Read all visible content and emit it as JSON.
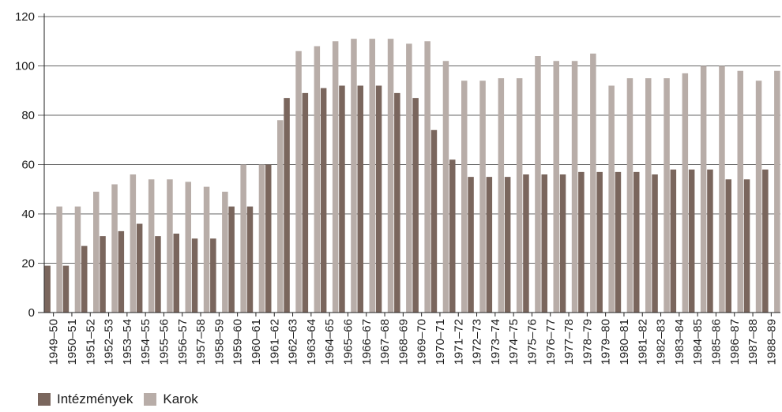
{
  "chart_data": {
    "type": "bar",
    "title": "",
    "xlabel": "",
    "ylabel": "",
    "ylim": [
      0,
      120
    ],
    "yticks": [
      0,
      20,
      40,
      60,
      80,
      100,
      120
    ],
    "grid": "horizontal",
    "legend_position": "bottom-left",
    "categories": [
      "1949–50",
      "1950–51",
      "1951–52",
      "1952–53",
      "1953–54",
      "1954–55",
      "1955–56",
      "1956–57",
      "1957–58",
      "1958–59",
      "1959–60",
      "1960–61",
      "1961–62",
      "1962–63",
      "1963–64",
      "1964–65",
      "1965–66",
      "1966–67",
      "1967–68",
      "1968–69",
      "1969–70",
      "1970–71",
      "1971–72",
      "1972–73",
      "1973–74",
      "1974–75",
      "1975–76",
      "1976–77",
      "1977–78",
      "1978–79",
      "1979–80",
      "1980–81",
      "1981–82",
      "1982–83",
      "1983–84",
      "1984–85",
      "1985–86",
      "1986–87",
      "1987–88",
      "1988–89"
    ],
    "series": [
      {
        "name": "Intézmények",
        "color": "#7a665d",
        "values": [
          19,
          19,
          27,
          31,
          33,
          36,
          31,
          32,
          30,
          30,
          43,
          43,
          60,
          87,
          89,
          91,
          92,
          92,
          92,
          89,
          87,
          74,
          62,
          55,
          55,
          55,
          56,
          56,
          56,
          57,
          57,
          57,
          57,
          56,
          58,
          58,
          58,
          54,
          54,
          58
        ]
      },
      {
        "name": "Karok",
        "color": "#b8ada8",
        "values": [
          43,
          43,
          49,
          52,
          56,
          54,
          54,
          53,
          51,
          49,
          60,
          60,
          78,
          106,
          108,
          110,
          111,
          111,
          111,
          109,
          110,
          102,
          94,
          94,
          95,
          95,
          104,
          102,
          102,
          105,
          92,
          95,
          95,
          95,
          97,
          100,
          100,
          98,
          94,
          98
        ]
      }
    ]
  }
}
